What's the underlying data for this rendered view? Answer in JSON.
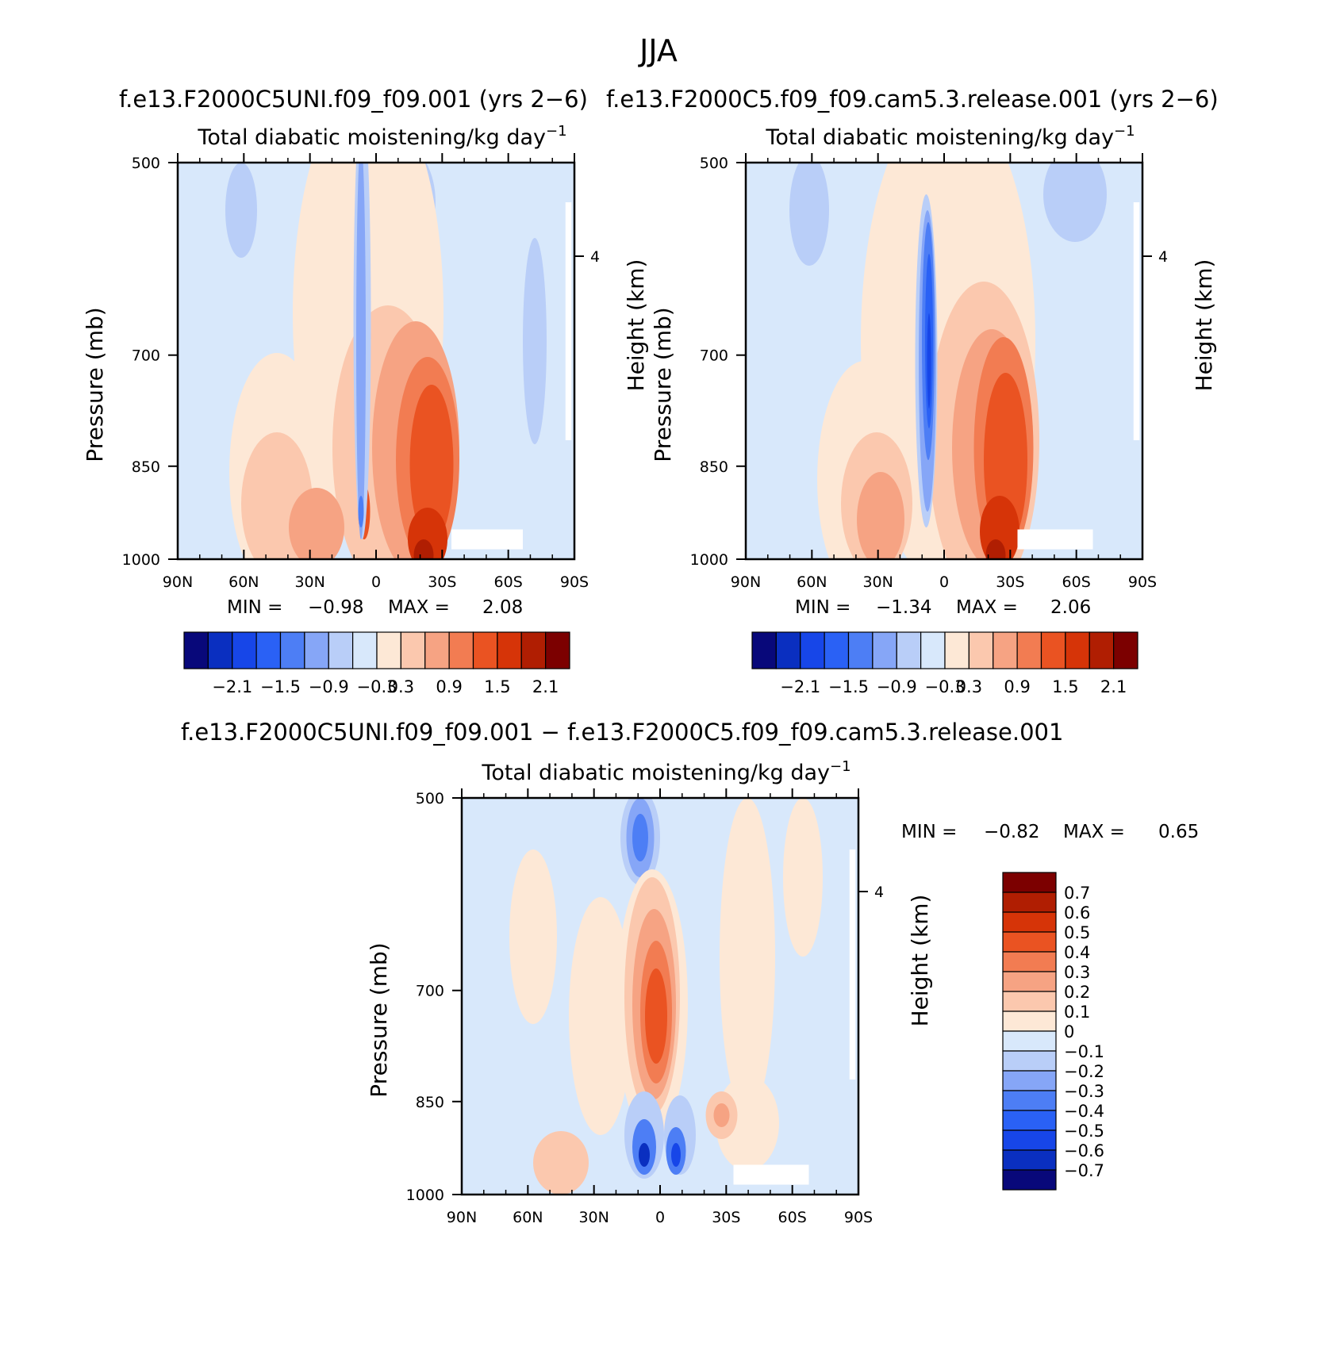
{
  "figure_title": "JJA",
  "chart_data": [
    {
      "type": "heatmap",
      "title": "f.e13.F2000C5UNI.f09_f09.001 (yrs 2−6)",
      "subtitle": "Total diabatic moistening/kg day",
      "subtitle_exp": "−1",
      "xlabel": "",
      "ylabel": "Pressure (mb)",
      "y2label": "Height (km)",
      "x_ticks": [
        "90N",
        "60N",
        "30N",
        "0",
        "30S",
        "60S",
        "90S"
      ],
      "y_ticks": [
        "500",
        "700",
        "850",
        "1000"
      ],
      "y_tick_values": [
        500,
        700,
        850,
        1000
      ],
      "ylim": [
        500,
        1000
      ],
      "y2_ticks": [
        "4"
      ],
      "xlim": [
        90,
        -90
      ],
      "stats": {
        "min_label": "MIN =",
        "min": "−0.98",
        "max_label": "MAX =",
        "max": "2.08"
      },
      "colorbar_ticks": [
        "−2.1",
        "−1.5",
        "−0.9",
        "−0.3",
        "0.3",
        "0.9",
        "1.5",
        "2.1"
      ],
      "levels": [
        -2.1,
        -1.8,
        -1.5,
        -1.2,
        -0.9,
        -0.6,
        -0.3,
        0,
        0.3,
        0.6,
        0.9,
        1.2,
        1.5,
        1.8,
        2.1
      ]
    },
    {
      "type": "heatmap",
      "title": "f.e13.F2000C5.f09_f09.cam5.3.release.001 (yrs 2−6)",
      "subtitle": "Total diabatic moistening/kg day",
      "subtitle_exp": "−1",
      "xlabel": "",
      "ylabel": "Pressure (mb)",
      "y2label": "Height (km)",
      "x_ticks": [
        "90N",
        "60N",
        "30N",
        "0",
        "30S",
        "60S",
        "90S"
      ],
      "y_ticks": [
        "500",
        "700",
        "850",
        "1000"
      ],
      "y_tick_values": [
        500,
        700,
        850,
        1000
      ],
      "ylim": [
        500,
        1000
      ],
      "y2_ticks": [
        "4"
      ],
      "xlim": [
        90,
        -90
      ],
      "stats": {
        "min_label": "MIN =",
        "min": "−1.34",
        "max_label": "MAX =",
        "max": "2.06"
      },
      "colorbar_ticks": [
        "−2.1",
        "−1.5",
        "−0.9",
        "−0.3",
        "0.3",
        "0.9",
        "1.5",
        "2.1"
      ],
      "levels": [
        -2.1,
        -1.8,
        -1.5,
        -1.2,
        -0.9,
        -0.6,
        -0.3,
        0,
        0.3,
        0.6,
        0.9,
        1.2,
        1.5,
        1.8,
        2.1
      ]
    },
    {
      "type": "heatmap",
      "title": "f.e13.F2000C5UNI.f09_f09.001 − f.e13.F2000C5.f09_f09.cam5.3.release.001",
      "subtitle": "Total diabatic moistening/kg day",
      "subtitle_exp": "−1",
      "xlabel": "",
      "ylabel": "Pressure (mb)",
      "y2label": "Height (km)",
      "x_ticks": [
        "90N",
        "60N",
        "30N",
        "0",
        "30S",
        "60S",
        "90S"
      ],
      "y_ticks": [
        "500",
        "700",
        "850",
        "1000"
      ],
      "y_tick_values": [
        500,
        700,
        850,
        1000
      ],
      "ylim": [
        500,
        1000
      ],
      "y2_ticks": [
        "4"
      ],
      "xlim": [
        90,
        -90
      ],
      "stats": {
        "min_label": "MIN =",
        "min": "−0.82",
        "max_label": "MAX =",
        "max": "0.65"
      },
      "colorbar_ticks": [
        "0.7",
        "0.6",
        "0.5",
        "0.4",
        "0.3",
        "0.2",
        "0.1",
        "0",
        "−0.1",
        "−0.2",
        "−0.3",
        "−0.4",
        "−0.5",
        "−0.6",
        "−0.7"
      ],
      "levels": [
        -0.7,
        -0.6,
        -0.5,
        -0.4,
        -0.3,
        -0.2,
        -0.1,
        0,
        0.1,
        0.2,
        0.3,
        0.4,
        0.5,
        0.6,
        0.7
      ]
    }
  ],
  "colors": {
    "palette": [
      "#08087a",
      "#0a2fc0",
      "#1746e8",
      "#2a61f5",
      "#4d7ef5",
      "#86a6f7",
      "#b9cef8",
      "#d8e8fb",
      "#fde8d6",
      "#fbc8ae",
      "#f6a383",
      "#f27c52",
      "#ea5322",
      "#d63408",
      "#b01e02",
      "#7c0000"
    ]
  }
}
